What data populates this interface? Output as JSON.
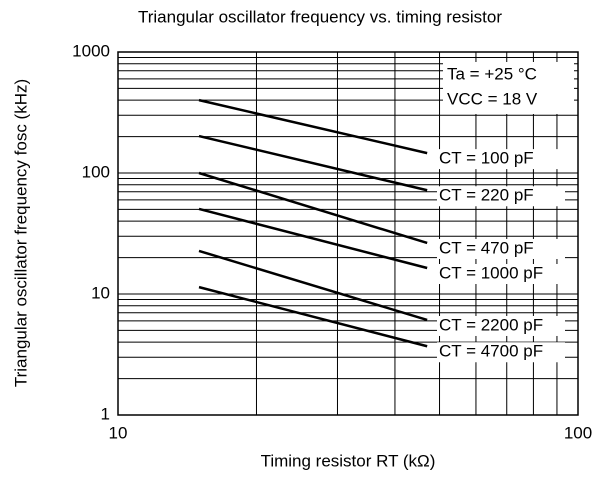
{
  "chart_data": {
    "type": "line",
    "title": "Triangular oscillator frequency vs. timing resistor",
    "x_label": "Timing resistor  RT (kΩ)",
    "y_label": "Triangular oscillator frequency  fosc (kHz)",
    "annotations": [
      "Ta = +25 °C",
      "VCC = 18 V"
    ],
    "x": [
      15,
      47
    ],
    "series": [
      {
        "name": "CT = 100 pF",
        "color": "#000000",
        "values": [
          400,
          146
        ]
      },
      {
        "name": "CT = 220 pF",
        "color": "#000000",
        "values": [
          202,
          72
        ]
      },
      {
        "name": "CT = 470 pF",
        "color": "#000000",
        "values": [
          100,
          26.4
        ]
      },
      {
        "name": "CT = 1000 pF",
        "color": "#000000",
        "values": [
          50.5,
          16.4
        ]
      },
      {
        "name": "CT = 2200 pF",
        "color": "#000000",
        "values": [
          22.7,
          6.1
        ]
      },
      {
        "name": "CT = 4700 pF",
        "color": "#000000",
        "values": [
          11.4,
          3.7
        ]
      }
    ],
    "xlim": [
      10,
      100
    ],
    "ylim": [
      1,
      1000
    ],
    "xticks": [
      10,
      100
    ],
    "yticks": [
      1,
      10,
      100,
      1000
    ],
    "xscale": "log",
    "yscale": "log",
    "grid": true,
    "minor_grid": true
  }
}
